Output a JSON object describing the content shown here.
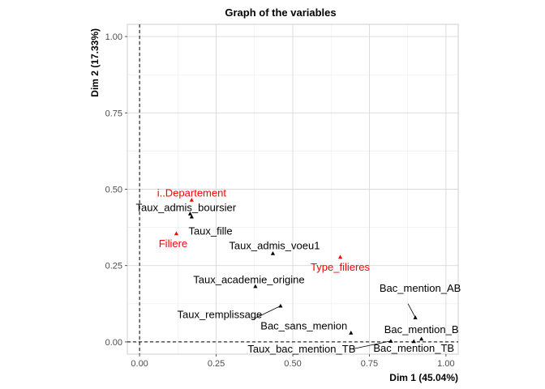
{
  "chart_data": {
    "type": "scatter",
    "title": "Graph of the variables",
    "xlabel": "Dim 1 (45.04%)",
    "ylabel": "Dim 2 (17.33%)",
    "xlim": [
      -0.04,
      1.04
    ],
    "ylim": [
      -0.04,
      1.04
    ],
    "x_ticks": [
      0.0,
      0.25,
      0.5,
      0.75,
      1.0
    ],
    "x_tick_labels": [
      "0.00",
      "0.25",
      "0.50",
      "0.75",
      "1.00"
    ],
    "y_ticks": [
      0.0,
      0.25,
      0.5,
      0.75,
      1.0
    ],
    "y_tick_labels": [
      "0.00",
      "0.25",
      "0.50",
      "0.75",
      "1.00"
    ],
    "grid": true,
    "reference_lines": {
      "x": 0,
      "y": 0,
      "style": "dashed"
    },
    "colors": {
      "active": "#000000",
      "supplementary": "#FF0000",
      "grid": "#d9d9d9"
    },
    "points": [
      {
        "label": "i..Departement",
        "x": 0.17,
        "y": 0.465,
        "group": "supplementary"
      },
      {
        "label": "Filiere",
        "x": 0.12,
        "y": 0.355,
        "group": "supplementary"
      },
      {
        "label": "Type_filieres",
        "x": 0.655,
        "y": 0.278,
        "group": "supplementary"
      },
      {
        "label": "Taux_admis_boursier",
        "x": 0.17,
        "y": 0.41,
        "group": "active"
      },
      {
        "label": "Taux_fille",
        "x": 0.165,
        "y": 0.42,
        "group": "active"
      },
      {
        "label": "Taux_admis_voeu1",
        "x": 0.435,
        "y": 0.29,
        "group": "active"
      },
      {
        "label": "Taux_academie_origine",
        "x": 0.378,
        "y": 0.182,
        "group": "active"
      },
      {
        "label": "Taux_remplissage",
        "x": 0.46,
        "y": 0.118,
        "group": "active"
      },
      {
        "label": "Bac_sans_menion",
        "x": 0.69,
        "y": 0.03,
        "group": "active"
      },
      {
        "label": "Bac_mention_AB",
        "x": 0.9,
        "y": 0.08,
        "group": "active"
      },
      {
        "label": "Bac_mention_B",
        "x": 0.92,
        "y": 0.01,
        "group": "active"
      },
      {
        "label": "Taux_bac_mention_TB",
        "x": 0.82,
        "y": 0.003,
        "group": "active"
      },
      {
        "label": "Bac_mention_TB",
        "x": 0.895,
        "y": 0.002,
        "group": "active"
      }
    ]
  }
}
